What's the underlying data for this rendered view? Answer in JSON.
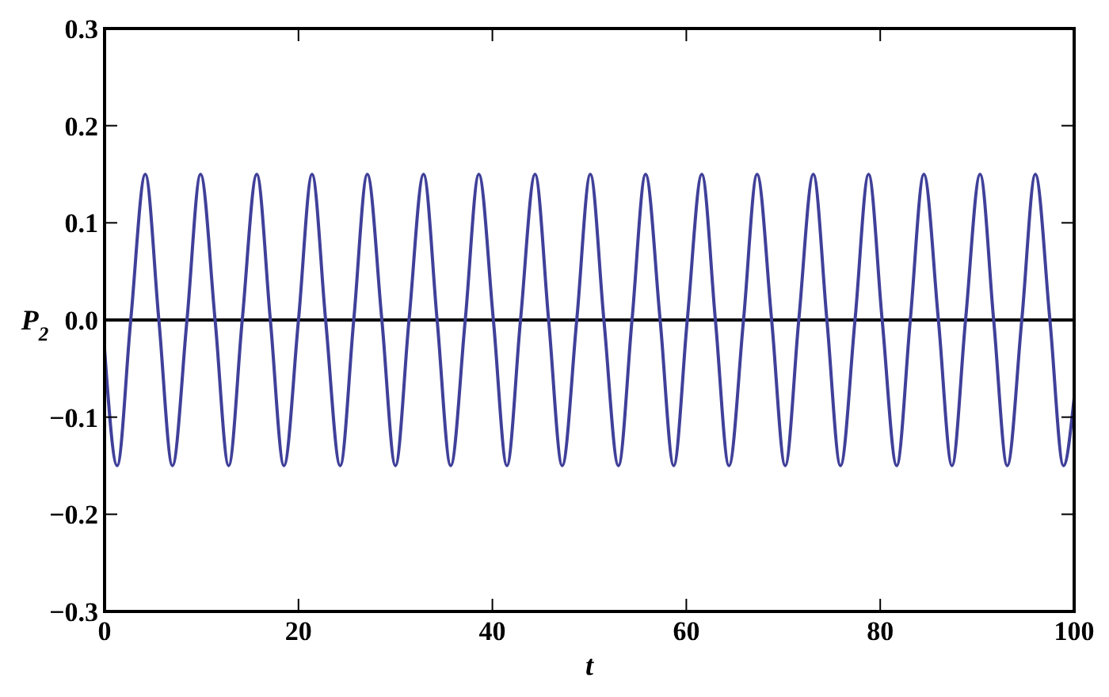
{
  "chart_data": {
    "type": "line",
    "xlabel": "t",
    "ylabel": "P$_{2}$",
    "xlim": [
      0,
      100
    ],
    "ylim": [
      -0.3,
      0.3
    ],
    "xticks": [
      0,
      20,
      40,
      60,
      80,
      100
    ],
    "yticks": [
      {
        "value": -0.3,
        "label": "−0.3"
      },
      {
        "value": -0.2,
        "label": "−0.2"
      },
      {
        "value": -0.1,
        "label": "−0.1"
      },
      {
        "value": 0,
        "label": "0.0"
      },
      0.1,
      0.2,
      0.3
    ],
    "grid": false,
    "marker": "none",
    "line_style": "solid",
    "ref_lines": [
      {
        "axis": "y",
        "value": 0,
        "color": "#000000"
      }
    ],
    "series": [
      {
        "color": "#40409a",
        "x": [
          0,
          1.3,
          2.7,
          4.2,
          5.6,
          7.0,
          8.5,
          9.9,
          11.4,
          12.8,
          14.2,
          15.7,
          17.1,
          18.5,
          20.0,
          21.4,
          22.8,
          24.3,
          25.7,
          27.1,
          28.6,
          30.0,
          31.4,
          32.9,
          34.3,
          35.7,
          37.2,
          38.6,
          40.1,
          41.5,
          42.9,
          44.4,
          45.8,
          47.2,
          48.7,
          50.1,
          51.5,
          53.0,
          54.4,
          55.8,
          57.3,
          58.7,
          60.1,
          61.6,
          63.0,
          64.4,
          65.9,
          67.3,
          68.8,
          70.2,
          71.6,
          73.1,
          74.5,
          75.9,
          77.4,
          78.8,
          80.2,
          81.7,
          83.1,
          84.5,
          86.0,
          87.4,
          88.8,
          90.3,
          91.7,
          93.1,
          94.6,
          96.0,
          97.5,
          98.9,
          100
        ],
        "values": [
          -0.03,
          -0.15,
          0,
          0.15,
          0,
          -0.15,
          0,
          0.15,
          0,
          -0.15,
          0,
          0.15,
          0,
          -0.15,
          0,
          0.15,
          0,
          -0.15,
          0,
          0.15,
          0,
          -0.15,
          0,
          0.15,
          0,
          -0.15,
          0,
          0.15,
          0,
          -0.15,
          0,
          0.15,
          0,
          -0.15,
          0,
          0.15,
          0,
          -0.15,
          0,
          0.15,
          0,
          -0.15,
          0,
          0.15,
          0,
          -0.15,
          0,
          0.15,
          0,
          -0.15,
          0,
          0.15,
          0,
          -0.15,
          0,
          0.15,
          0,
          -0.15,
          0,
          0.15,
          0,
          -0.15,
          0,
          0.15,
          0,
          -0.15,
          0,
          0.15,
          0,
          -0.15,
          -0.08
        ]
      }
    ]
  }
}
